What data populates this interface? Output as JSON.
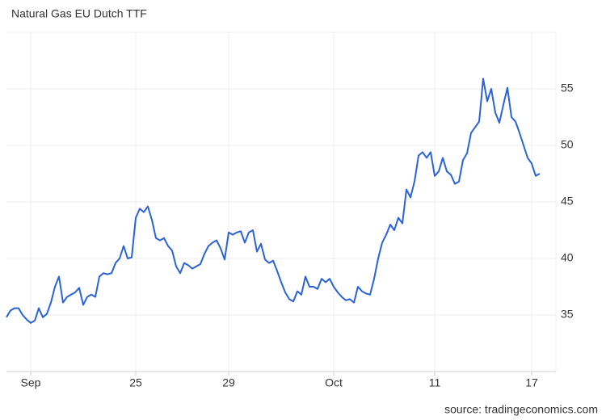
{
  "chart_data": {
    "type": "line",
    "title": "Natural Gas EU Dutch TTF",
    "source": "source: tradingeconomics.com",
    "categories": [
      null,
      null,
      null,
      null,
      null,
      null,
      "Sep",
      null,
      null,
      null,
      null,
      null,
      null,
      null,
      null,
      null,
      null,
      null,
      null,
      null,
      null,
      null,
      null,
      null,
      null,
      null,
      null,
      null,
      null,
      null,
      null,
      null,
      "25",
      null,
      null,
      null,
      null,
      null,
      null,
      null,
      null,
      null,
      null,
      null,
      null,
      null,
      null,
      null,
      null,
      null,
      null,
      null,
      null,
      null,
      null,
      "29",
      null,
      null,
      null,
      null,
      null,
      null,
      null,
      null,
      null,
      null,
      null,
      null,
      null,
      null,
      null,
      null,
      null,
      null,
      null,
      null,
      null,
      null,
      null,
      null,
      null,
      "Oct",
      null,
      null,
      null,
      null,
      null,
      null,
      null,
      null,
      null,
      null,
      null,
      null,
      null,
      null,
      null,
      null,
      null,
      null,
      null,
      null,
      null,
      null,
      null,
      null,
      "11",
      null,
      null,
      null,
      null,
      null,
      null,
      null,
      null,
      null,
      null,
      null,
      null,
      null,
      null,
      null,
      null,
      null,
      null,
      null,
      null,
      null,
      null,
      null,
      "17",
      null,
      null
    ],
    "values": [
      34.8,
      35.4,
      35.6,
      35.6,
      35.0,
      34.6,
      34.3,
      34.5,
      35.6,
      34.8,
      35.1,
      36.1,
      37.5,
      38.4,
      36.1,
      36.6,
      36.8,
      37.0,
      37.4,
      35.9,
      36.6,
      36.8,
      36.6,
      38.4,
      38.7,
      38.6,
      38.7,
      39.6,
      40.0,
      41.1,
      40.0,
      40.1,
      43.6,
      44.4,
      44.1,
      44.6,
      43.4,
      41.8,
      41.6,
      41.8,
      41.1,
      40.7,
      39.3,
      38.7,
      39.6,
      39.4,
      39.1,
      39.3,
      39.5,
      40.4,
      41.1,
      41.4,
      41.6,
      40.9,
      39.9,
      42.3,
      42.1,
      42.3,
      42.4,
      41.4,
      42.3,
      42.5,
      40.6,
      41.3,
      39.9,
      39.6,
      39.8,
      38.9,
      37.9,
      37.0,
      36.4,
      36.2,
      37.1,
      36.8,
      38.4,
      37.5,
      37.5,
      37.3,
      38.2,
      37.9,
      38.2,
      37.5,
      37.0,
      36.6,
      36.3,
      36.4,
      36.1,
      37.5,
      37.1,
      36.9,
      36.8,
      38.2,
      40.0,
      41.4,
      42.1,
      43.0,
      42.5,
      43.6,
      43.1,
      46.1,
      45.4,
      46.8,
      49.1,
      49.4,
      48.9,
      49.4,
      47.3,
      47.7,
      48.9,
      47.7,
      47.4,
      46.6,
      46.8,
      48.7,
      49.3,
      51.1,
      51.6,
      52.1,
      55.9,
      53.9,
      55.0,
      52.9,
      52.0,
      53.6,
      55.1,
      52.5,
      52.1,
      51.1,
      50.0,
      48.9,
      48.4,
      47.3,
      47.5
    ],
    "color": "#2a62d8",
    "ylim": [
      30,
      60
    ],
    "yticks": [
      35,
      40,
      45,
      50,
      55
    ],
    "grid": true
  }
}
